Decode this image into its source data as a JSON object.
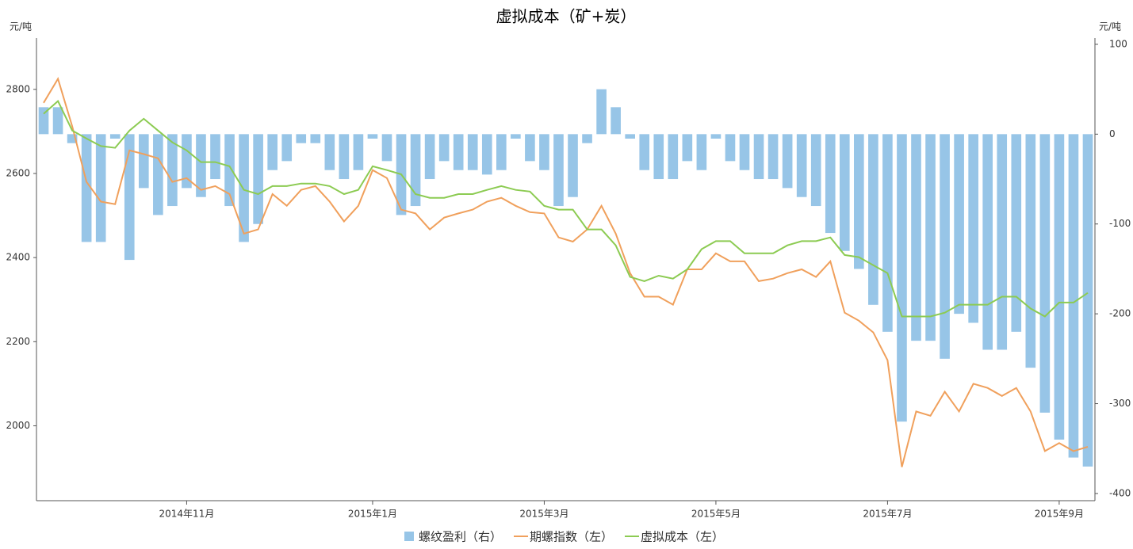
{
  "chart_data": {
    "type": "combo",
    "title": "虚拟成本（矿+炭）",
    "y_unit": "元/吨",
    "y2_unit": "元/吨",
    "categories": [
      null,
      null,
      null,
      null,
      null,
      null,
      null,
      null,
      null,
      null,
      "2014年11月",
      null,
      null,
      null,
      null,
      null,
      null,
      null,
      null,
      null,
      null,
      null,
      null,
      "2015年1月",
      null,
      null,
      null,
      null,
      null,
      null,
      null,
      null,
      null,
      null,
      null,
      "2015年3月",
      null,
      null,
      null,
      null,
      null,
      null,
      null,
      null,
      null,
      null,
      null,
      "2015年5月",
      null,
      null,
      null,
      null,
      null,
      null,
      null,
      null,
      null,
      null,
      null,
      "2015年7月",
      null,
      null,
      null,
      null,
      null,
      null,
      null,
      null,
      null,
      null,
      null,
      "2015年9月",
      null,
      null
    ],
    "ylim": [
      1822,
      2922
    ],
    "yticks": [
      2000,
      2200,
      2400,
      2600,
      2800
    ],
    "y2lim": [
      -408,
      107
    ],
    "y2ticks": [
      -400,
      -300,
      -200,
      -100,
      0,
      100
    ],
    "series": [
      {
        "name": "螺纹盈利（右）",
        "type": "bar",
        "axis": "y2",
        "color": "#97c5e7",
        "values": [
          30,
          30,
          -10,
          -120,
          -120,
          -5,
          -140,
          -60,
          -90,
          -80,
          -60,
          -70,
          -50,
          -80,
          -120,
          -100,
          -40,
          -30,
          -10,
          -10,
          -40,
          -50,
          -40,
          -5,
          -30,
          -90,
          -80,
          -50,
          -30,
          -40,
          -40,
          -45,
          -40,
          -5,
          -30,
          -40,
          -80,
          -70,
          -10,
          50,
          30,
          -5,
          -40,
          -50,
          -50,
          -30,
          -40,
          -5,
          -30,
          -40,
          -50,
          -50,
          -60,
          -70,
          -80,
          -110,
          -130,
          -150,
          -190,
          -220,
          -320,
          -230,
          -230,
          -250,
          -200,
          -210,
          -240,
          -240,
          -220,
          -260,
          -310,
          -340,
          -360,
          -370
        ]
      },
      {
        "name": "期螺指数（左）",
        "type": "line",
        "color": "#f0a05c",
        "values": [
          2768,
          2825,
          2712,
          2580,
          2533,
          2527,
          2655,
          2646,
          2636,
          2580,
          2589,
          2561,
          2570,
          2551,
          2457,
          2467,
          2551,
          2523,
          2561,
          2570,
          2533,
          2486,
          2523,
          2608,
          2589,
          2514,
          2505,
          2467,
          2495,
          2505,
          2514,
          2533,
          2542,
          2523,
          2508,
          2505,
          2448,
          2438,
          2467,
          2523,
          2457,
          2363,
          2307,
          2307,
          2288,
          2372,
          2372,
          2410,
          2391,
          2391,
          2344,
          2350,
          2363,
          2372,
          2354,
          2391,
          2269,
          2250,
          2222,
          2156,
          1902,
          2034,
          2024,
          2081,
          2034,
          2100,
          2090,
          2071,
          2090,
          2034,
          1940,
          1959,
          1940,
          1950
        ]
      },
      {
        "name": "虚拟成本（左）",
        "type": "line",
        "color": "#8ccb52",
        "values": [
          2742,
          2772,
          2702,
          2683,
          2665,
          2661,
          2702,
          2730,
          2702,
          2674,
          2655,
          2627,
          2627,
          2617,
          2561,
          2551,
          2570,
          2570,
          2576,
          2576,
          2570,
          2551,
          2561,
          2617,
          2608,
          2598,
          2551,
          2542,
          2542,
          2551,
          2551,
          2561,
          2570,
          2561,
          2557,
          2523,
          2514,
          2514,
          2467,
          2467,
          2429,
          2354,
          2344,
          2357,
          2350,
          2372,
          2420,
          2439,
          2439,
          2410,
          2410,
          2410,
          2429,
          2439,
          2439,
          2448,
          2406,
          2401,
          2382,
          2363,
          2260,
          2260,
          2260,
          2269,
          2288,
          2288,
          2288,
          2307,
          2307,
          2279,
          2260,
          2293,
          2293,
          2316
        ]
      }
    ]
  }
}
